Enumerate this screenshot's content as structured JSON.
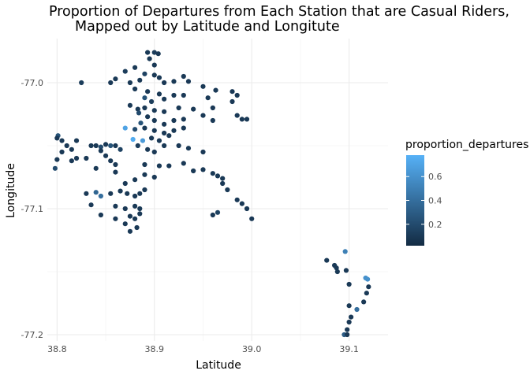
{
  "chart_data": {
    "type": "scatter",
    "title": [
      "Proportion of Departures from Each Station that are Casual Riders,",
      "Mapped out by Latitude and Longitute"
    ],
    "xlabel": "Latitude",
    "ylabel": "Longitude",
    "xlim": [
      38.79,
      39.14
    ],
    "ylim": [
      -77.205,
      -76.965
    ],
    "y_reversed": true,
    "x_ticks": [
      38.8,
      38.9,
      39.0,
      39.1
    ],
    "x_tick_labels": [
      "38.8",
      "38.9",
      "39.0",
      "39.1"
    ],
    "y_ticks": [
      -77.0,
      -77.1,
      -77.2
    ],
    "y_tick_labels": [
      "-77.0",
      "-77.1",
      "-77.2"
    ],
    "grid": true,
    "legend": {
      "title": "proportion_departures",
      "placement": "right",
      "range": [
        0.02,
        0.78
      ],
      "ticks": [
        0.2,
        0.4,
        0.6
      ],
      "tick_labels": [
        "0.2",
        "0.4",
        "0.6"
      ],
      "color_low": "#132b43",
      "color_high": "#56b1f7"
    },
    "points": [
      {
        "x": 38.893,
        "y": -76.976,
        "v": 0.1
      },
      {
        "x": 38.904,
        "y": -76.977,
        "v": 0.1
      },
      {
        "x": 38.9,
        "y": -76.976,
        "v": 0.12
      },
      {
        "x": 38.895,
        "y": -76.981,
        "v": 0.1
      },
      {
        "x": 38.9,
        "y": -76.986,
        "v": 0.1
      },
      {
        "x": 38.88,
        "y": -76.988,
        "v": 0.1
      },
      {
        "x": 38.87,
        "y": -76.991,
        "v": 0.12
      },
      {
        "x": 38.89,
        "y": -76.993,
        "v": 0.15
      },
      {
        "x": 38.9,
        "y": -76.994,
        "v": 0.1
      },
      {
        "x": 38.905,
        "y": -76.996,
        "v": 0.1
      },
      {
        "x": 38.86,
        "y": -76.997,
        "v": 0.1
      },
      {
        "x": 38.875,
        "y": -77.0,
        "v": 0.1
      },
      {
        "x": 38.885,
        "y": -76.998,
        "v": 0.1
      },
      {
        "x": 38.91,
        "y": -77.0,
        "v": 0.1
      },
      {
        "x": 38.92,
        "y": -76.999,
        "v": 0.1
      },
      {
        "x": 38.93,
        "y": -76.995,
        "v": 0.1
      },
      {
        "x": 38.935,
        "y": -76.999,
        "v": 0.1
      },
      {
        "x": 38.825,
        "y": -77.0,
        "v": 0.12
      },
      {
        "x": 38.855,
        "y": -77.0,
        "v": 0.1
      },
      {
        "x": 38.88,
        "y": -77.005,
        "v": 0.1
      },
      {
        "x": 38.893,
        "y": -77.007,
        "v": 0.1
      },
      {
        "x": 38.905,
        "y": -77.009,
        "v": 0.1
      },
      {
        "x": 38.89,
        "y": -77.012,
        "v": 0.25
      },
      {
        "x": 38.897,
        "y": -77.015,
        "v": 0.12
      },
      {
        "x": 38.91,
        "y": -77.013,
        "v": 0.1
      },
      {
        "x": 38.92,
        "y": -77.01,
        "v": 0.1
      },
      {
        "x": 38.93,
        "y": -77.01,
        "v": 0.1
      },
      {
        "x": 38.95,
        "y": -77.003,
        "v": 0.1
      },
      {
        "x": 38.963,
        "y": -77.006,
        "v": 0.1
      },
      {
        "x": 38.98,
        "y": -77.007,
        "v": 0.1
      },
      {
        "x": 38.985,
        "y": -77.01,
        "v": 0.1
      },
      {
        "x": 38.955,
        "y": -77.012,
        "v": 0.1
      },
      {
        "x": 38.875,
        "y": -77.018,
        "v": 0.1
      },
      {
        "x": 38.883,
        "y": -77.021,
        "v": 0.1
      },
      {
        "x": 38.89,
        "y": -77.02,
        "v": 0.1
      },
      {
        "x": 38.9,
        "y": -77.022,
        "v": 0.1
      },
      {
        "x": 38.91,
        "y": -77.023,
        "v": 0.1
      },
      {
        "x": 38.925,
        "y": -77.02,
        "v": 0.1
      },
      {
        "x": 38.94,
        "y": -77.021,
        "v": 0.1
      },
      {
        "x": 38.96,
        "y": -77.02,
        "v": 0.1
      },
      {
        "x": 38.98,
        "y": -77.015,
        "v": 0.1
      },
      {
        "x": 38.985,
        "y": -77.026,
        "v": 0.1
      },
      {
        "x": 38.99,
        "y": -77.029,
        "v": 0.1
      },
      {
        "x": 38.995,
        "y": -77.029,
        "v": 0.1
      },
      {
        "x": 38.884,
        "y": -77.024,
        "v": 0.2
      },
      {
        "x": 38.886,
        "y": -77.032,
        "v": 0.25
      },
      {
        "x": 38.893,
        "y": -77.027,
        "v": 0.1
      },
      {
        "x": 38.9,
        "y": -77.03,
        "v": 0.1
      },
      {
        "x": 38.91,
        "y": -77.033,
        "v": 0.1
      },
      {
        "x": 38.92,
        "y": -77.03,
        "v": 0.1
      },
      {
        "x": 38.93,
        "y": -77.029,
        "v": 0.1
      },
      {
        "x": 38.95,
        "y": -77.026,
        "v": 0.1
      },
      {
        "x": 38.96,
        "y": -77.03,
        "v": 0.1
      },
      {
        "x": 38.87,
        "y": -77.036,
        "v": 0.7
      },
      {
        "x": 38.88,
        "y": -77.037,
        "v": 0.2
      },
      {
        "x": 38.89,
        "y": -77.036,
        "v": 0.1
      },
      {
        "x": 38.9,
        "y": -77.038,
        "v": 0.1
      },
      {
        "x": 38.91,
        "y": -77.04,
        "v": 0.1
      },
      {
        "x": 38.92,
        "y": -77.038,
        "v": 0.1
      },
      {
        "x": 38.93,
        "y": -77.036,
        "v": 0.1
      },
      {
        "x": 38.878,
        "y": -77.045,
        "v": 0.75
      },
      {
        "x": 38.888,
        "y": -77.046,
        "v": 0.65
      },
      {
        "x": 38.897,
        "y": -77.044,
        "v": 0.1
      },
      {
        "x": 38.905,
        "y": -77.046,
        "v": 0.1
      },
      {
        "x": 38.915,
        "y": -77.042,
        "v": 0.1
      },
      {
        "x": 38.801,
        "y": -77.042,
        "v": 0.25
      },
      {
        "x": 38.8,
        "y": -77.044,
        "v": 0.1
      },
      {
        "x": 38.805,
        "y": -77.046,
        "v": 0.1
      },
      {
        "x": 38.82,
        "y": -77.046,
        "v": 0.1
      },
      {
        "x": 38.81,
        "y": -77.05,
        "v": 0.1
      },
      {
        "x": 38.815,
        "y": -77.053,
        "v": 0.1
      },
      {
        "x": 38.805,
        "y": -77.055,
        "v": 0.1
      },
      {
        "x": 38.835,
        "y": -77.05,
        "v": 0.1
      },
      {
        "x": 38.84,
        "y": -77.05,
        "v": 0.1
      },
      {
        "x": 38.845,
        "y": -77.051,
        "v": 0.2
      },
      {
        "x": 38.85,
        "y": -77.049,
        "v": 0.1
      },
      {
        "x": 38.855,
        "y": -77.05,
        "v": 0.25
      },
      {
        "x": 38.86,
        "y": -77.05,
        "v": 0.1
      },
      {
        "x": 38.865,
        "y": -77.053,
        "v": 0.15
      },
      {
        "x": 38.845,
        "y": -77.054,
        "v": 0.1
      },
      {
        "x": 38.85,
        "y": -77.058,
        "v": 0.1
      },
      {
        "x": 38.883,
        "y": -77.05,
        "v": 0.12
      },
      {
        "x": 38.893,
        "y": -77.053,
        "v": 0.1
      },
      {
        "x": 38.9,
        "y": -77.055,
        "v": 0.1
      },
      {
        "x": 38.91,
        "y": -77.05,
        "v": 0.1
      },
      {
        "x": 38.925,
        "y": -77.05,
        "v": 0.1
      },
      {
        "x": 38.935,
        "y": -77.052,
        "v": 0.1
      },
      {
        "x": 38.95,
        "y": -77.055,
        "v": 0.1
      },
      {
        "x": 38.8,
        "y": -77.061,
        "v": 0.1
      },
      {
        "x": 38.815,
        "y": -77.062,
        "v": 0.1
      },
      {
        "x": 38.82,
        "y": -77.06,
        "v": 0.1
      },
      {
        "x": 38.83,
        "y": -77.06,
        "v": 0.1
      },
      {
        "x": 38.855,
        "y": -77.062,
        "v": 0.1
      },
      {
        "x": 38.86,
        "y": -77.065,
        "v": 0.1
      },
      {
        "x": 38.798,
        "y": -77.068,
        "v": 0.2
      },
      {
        "x": 38.84,
        "y": -77.068,
        "v": 0.1
      },
      {
        "x": 38.86,
        "y": -77.071,
        "v": 0.1
      },
      {
        "x": 38.89,
        "y": -77.065,
        "v": 0.1
      },
      {
        "x": 38.905,
        "y": -77.066,
        "v": 0.1
      },
      {
        "x": 38.915,
        "y": -77.066,
        "v": 0.1
      },
      {
        "x": 38.93,
        "y": -77.064,
        "v": 0.1
      },
      {
        "x": 38.94,
        "y": -77.07,
        "v": 0.1
      },
      {
        "x": 38.95,
        "y": -77.069,
        "v": 0.1
      },
      {
        "x": 38.96,
        "y": -77.072,
        "v": 0.1
      },
      {
        "x": 38.965,
        "y": -77.074,
        "v": 0.1
      },
      {
        "x": 38.97,
        "y": -77.076,
        "v": 0.1
      },
      {
        "x": 38.89,
        "y": -77.073,
        "v": 0.1
      },
      {
        "x": 38.9,
        "y": -77.075,
        "v": 0.1
      },
      {
        "x": 38.88,
        "y": -77.077,
        "v": 0.1
      },
      {
        "x": 38.87,
        "y": -77.08,
        "v": 0.1
      },
      {
        "x": 38.83,
        "y": -77.088,
        "v": 0.1
      },
      {
        "x": 38.84,
        "y": -77.087,
        "v": 0.35
      },
      {
        "x": 38.845,
        "y": -77.09,
        "v": 0.4
      },
      {
        "x": 38.855,
        "y": -77.088,
        "v": 0.1
      },
      {
        "x": 38.865,
        "y": -77.086,
        "v": 0.1
      },
      {
        "x": 38.872,
        "y": -77.088,
        "v": 0.1
      },
      {
        "x": 38.88,
        "y": -77.09,
        "v": 0.1
      },
      {
        "x": 38.885,
        "y": -77.088,
        "v": 0.1
      },
      {
        "x": 38.89,
        "y": -77.085,
        "v": 0.1
      },
      {
        "x": 38.835,
        "y": -77.097,
        "v": 0.1
      },
      {
        "x": 38.86,
        "y": -77.098,
        "v": 0.1
      },
      {
        "x": 38.87,
        "y": -77.1,
        "v": 0.1
      },
      {
        "x": 38.88,
        "y": -77.098,
        "v": 0.1
      },
      {
        "x": 38.885,
        "y": -77.1,
        "v": 0.1
      },
      {
        "x": 38.845,
        "y": -77.105,
        "v": 0.1
      },
      {
        "x": 38.86,
        "y": -77.108,
        "v": 0.1
      },
      {
        "x": 38.875,
        "y": -77.106,
        "v": 0.1
      },
      {
        "x": 38.88,
        "y": -77.108,
        "v": 0.1
      },
      {
        "x": 38.885,
        "y": -77.104,
        "v": 0.1
      },
      {
        "x": 38.87,
        "y": -77.112,
        "v": 0.1
      },
      {
        "x": 38.875,
        "y": -77.118,
        "v": 0.1
      },
      {
        "x": 38.882,
        "y": -77.115,
        "v": 0.1
      },
      {
        "x": 38.97,
        "y": -77.08,
        "v": 0.1
      },
      {
        "x": 38.975,
        "y": -77.085,
        "v": 0.1
      },
      {
        "x": 38.985,
        "y": -77.093,
        "v": 0.1
      },
      {
        "x": 38.99,
        "y": -77.096,
        "v": 0.1
      },
      {
        "x": 38.995,
        "y": -77.1,
        "v": 0.1
      },
      {
        "x": 39.0,
        "y": -77.108,
        "v": 0.1
      },
      {
        "x": 38.965,
        "y": -77.103,
        "v": 0.15
      },
      {
        "x": 38.96,
        "y": -77.105,
        "v": 0.1
      },
      {
        "x": 39.077,
        "y": -77.141,
        "v": 0.1
      },
      {
        "x": 39.085,
        "y": -77.145,
        "v": 0.1
      },
      {
        "x": 39.087,
        "y": -77.147,
        "v": 0.1
      },
      {
        "x": 39.088,
        "y": -77.15,
        "v": 0.1
      },
      {
        "x": 39.096,
        "y": -77.134,
        "v": 0.5
      },
      {
        "x": 39.097,
        "y": -77.149,
        "v": 0.1
      },
      {
        "x": 39.1,
        "y": -77.16,
        "v": 0.1
      },
      {
        "x": 39.117,
        "y": -77.155,
        "v": 0.6
      },
      {
        "x": 39.119,
        "y": -77.156,
        "v": 0.6
      },
      {
        "x": 39.12,
        "y": -77.162,
        "v": 0.1
      },
      {
        "x": 39.118,
        "y": -77.167,
        "v": 0.1
      },
      {
        "x": 39.115,
        "y": -77.174,
        "v": 0.1
      },
      {
        "x": 39.1,
        "y": -77.177,
        "v": 0.1
      },
      {
        "x": 39.108,
        "y": -77.18,
        "v": 0.4
      },
      {
        "x": 39.102,
        "y": -77.186,
        "v": 0.1
      },
      {
        "x": 39.1,
        "y": -77.19,
        "v": 0.1
      },
      {
        "x": 39.098,
        "y": -77.196,
        "v": 0.1
      },
      {
        "x": 39.095,
        "y": -77.2,
        "v": 0.3
      },
      {
        "x": 39.098,
        "y": -77.2,
        "v": 0.1
      }
    ]
  }
}
